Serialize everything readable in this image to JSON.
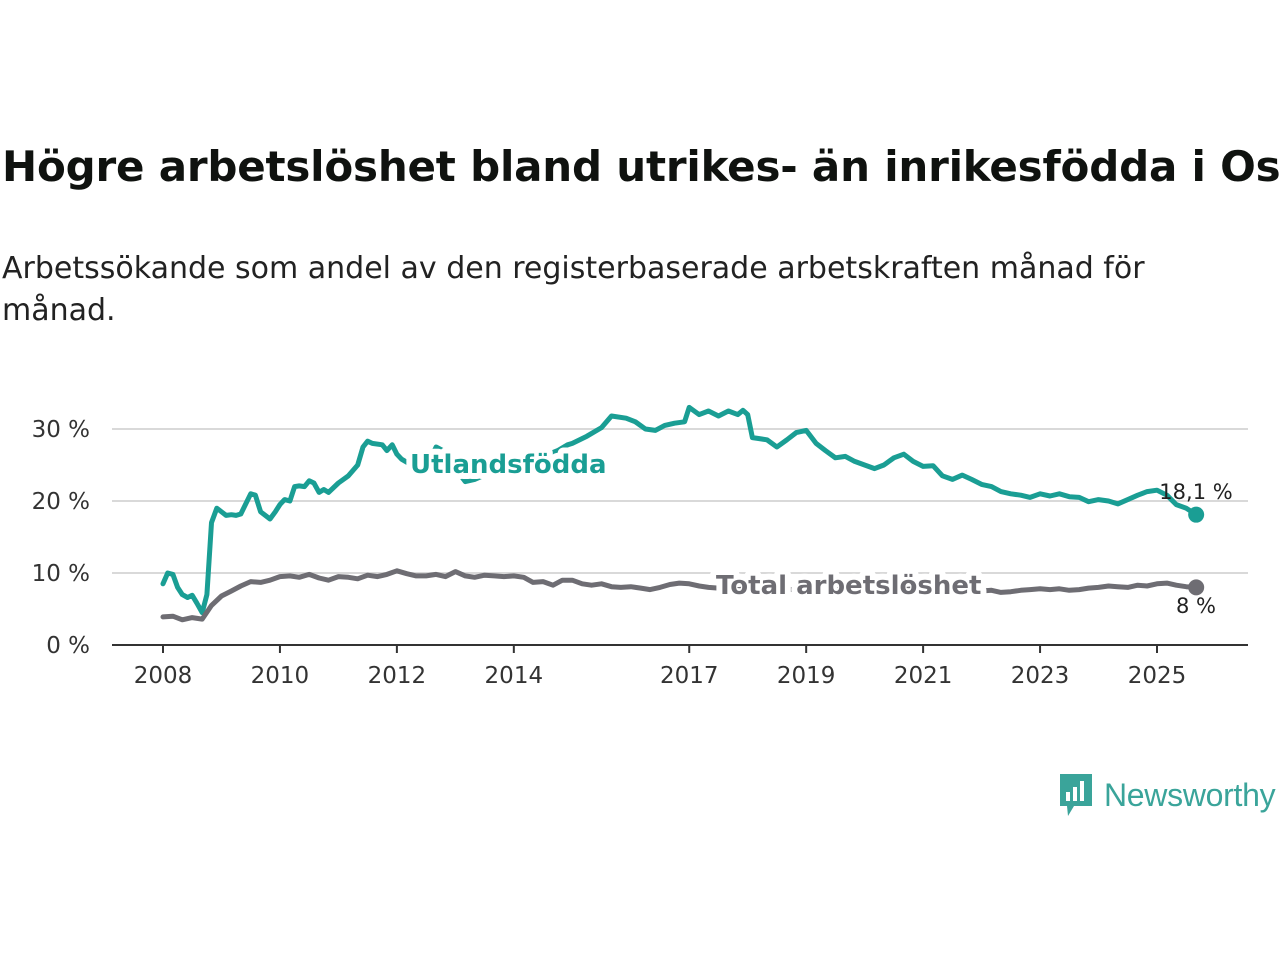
{
  "title": "Högre arbetslöshet bland utrikes- än inrikesfödda i Osby",
  "subtitle": "Arbetssökande som andel av den registerbaserade arbetskraften månad för månad.",
  "brand": {
    "name": "Newsworthy",
    "color": "#3aa49a",
    "icon": "bar-chart-speech-bubble-icon"
  },
  "chart_data": {
    "type": "line",
    "title": "Högre arbetslöshet bland utrikes- än inrikesfödda i Osby",
    "xlabel": "",
    "ylabel": "",
    "ylim": [
      0,
      33
    ],
    "xlim": [
      2007.8,
      2025.75
    ],
    "grid": true,
    "x_ticks": [
      2008,
      2010,
      2012,
      2014,
      2017,
      2019,
      2021,
      2023,
      2025
    ],
    "x_tick_labels": [
      "2008",
      "2010",
      "2012",
      "2014",
      "2017",
      "2019",
      "2021",
      "2023",
      "2025"
    ],
    "y_ticks": [
      0,
      10,
      20,
      30
    ],
    "y_tick_labels": [
      "0 %",
      "10 %",
      "20 %",
      "30 %"
    ],
    "series": [
      {
        "name": "Utlandsfödda",
        "color": "#1a9e94",
        "end_label": "18,1 %",
        "x": [
          2008.0,
          2008.08,
          2008.17,
          2008.25,
          2008.33,
          2008.42,
          2008.5,
          2008.58,
          2008.67,
          2008.75,
          2008.83,
          2008.92,
          2009.0,
          2009.08,
          2009.17,
          2009.25,
          2009.33,
          2009.5,
          2009.58,
          2009.67,
          2009.75,
          2009.83,
          2009.92,
          2010.0,
          2010.08,
          2010.17,
          2010.25,
          2010.33,
          2010.42,
          2010.5,
          2010.58,
          2010.67,
          2010.75,
          2010.83,
          2011.0,
          2011.17,
          2011.33,
          2011.42,
          2011.5,
          2011.58,
          2011.75,
          2011.83,
          2011.92,
          2012.0,
          2012.08,
          2012.25,
          2012.5,
          2012.67,
          2012.83,
          2013.0,
          2013.17,
          2013.33,
          2013.5,
          2013.75,
          2014.0,
          2014.25,
          2014.5,
          2014.75,
          2014.92,
          2015.0,
          2015.25,
          2015.5,
          2015.67,
          2015.92,
          2016.08,
          2016.25,
          2016.42,
          2016.58,
          2016.75,
          2016.92,
          2017.0,
          2017.17,
          2017.33,
          2017.5,
          2017.67,
          2017.83,
          2017.92,
          2018.0,
          2018.08,
          2018.17,
          2018.33,
          2018.5,
          2018.67,
          2018.83,
          2019.0,
          2019.17,
          2019.33,
          2019.5,
          2019.67,
          2019.83,
          2020.0,
          2020.17,
          2020.33,
          2020.5,
          2020.67,
          2020.83,
          2021.0,
          2021.17,
          2021.33,
          2021.5,
          2021.67,
          2021.83,
          2022.0,
          2022.17,
          2022.33,
          2022.5,
          2022.67,
          2022.83,
          2023.0,
          2023.17,
          2023.33,
          2023.5,
          2023.67,
          2023.83,
          2024.0,
          2024.17,
          2024.33,
          2024.5,
          2024.67,
          2024.83,
          2025.0,
          2025.17,
          2025.33,
          2025.5,
          2025.67
        ],
        "values": [
          8.5,
          10.0,
          9.8,
          8.0,
          7.0,
          6.6,
          6.9,
          5.8,
          4.5,
          7.0,
          17.0,
          19.0,
          18.5,
          18.0,
          18.1,
          18.0,
          18.2,
          21.0,
          20.8,
          18.5,
          18.0,
          17.5,
          18.5,
          19.5,
          20.2,
          20.0,
          22.0,
          22.1,
          22.0,
          22.8,
          22.5,
          21.2,
          21.6,
          21.2,
          22.5,
          23.5,
          25.0,
          27.5,
          28.3,
          28.0,
          27.8,
          27.0,
          27.8,
          26.5,
          25.8,
          25.0,
          24.5,
          27.5,
          26.8,
          24.5,
          22.7,
          23.0,
          23.6,
          24.5,
          25.2,
          25.5,
          26.2,
          27.0,
          27.8,
          28.0,
          29.0,
          30.2,
          31.8,
          31.5,
          31.0,
          30.0,
          29.8,
          30.5,
          30.8,
          31.0,
          33.0,
          32.0,
          32.5,
          31.8,
          32.5,
          32.0,
          32.6,
          32.0,
          28.8,
          28.7,
          28.5,
          27.5,
          28.5,
          29.5,
          29.8,
          28.0,
          27.0,
          26.0,
          26.2,
          25.5,
          25.0,
          24.5,
          25.0,
          26.0,
          26.5,
          25.5,
          24.8,
          24.9,
          23.5,
          23.0,
          23.6,
          23.0,
          22.3,
          22.0,
          21.3,
          21.0,
          20.8,
          20.5,
          21.0,
          20.7,
          21.0,
          20.6,
          20.5,
          19.9,
          20.2,
          20.0,
          19.6,
          20.2,
          20.8,
          21.3,
          21.5,
          20.8,
          19.5,
          19.0,
          18.1
        ]
      },
      {
        "name": "Total arbetslöshet",
        "color": "#6e6d73",
        "end_label": "8 %",
        "x": [
          2008.0,
          2008.17,
          2008.33,
          2008.5,
          2008.67,
          2008.83,
          2009.0,
          2009.17,
          2009.33,
          2009.5,
          2009.67,
          2009.83,
          2010.0,
          2010.17,
          2010.33,
          2010.5,
          2010.67,
          2010.83,
          2011.0,
          2011.17,
          2011.33,
          2011.5,
          2011.67,
          2011.83,
          2012.0,
          2012.17,
          2012.33,
          2012.5,
          2012.67,
          2012.83,
          2013.0,
          2013.17,
          2013.33,
          2013.5,
          2013.67,
          2013.83,
          2014.0,
          2014.17,
          2014.33,
          2014.5,
          2014.67,
          2014.83,
          2015.0,
          2015.17,
          2015.33,
          2015.5,
          2015.67,
          2015.83,
          2016.0,
          2016.17,
          2016.33,
          2016.5,
          2016.67,
          2016.83,
          2017.0,
          2017.17,
          2017.33,
          2017.5,
          2017.67,
          2017.83,
          2018.0,
          2018.17,
          2018.33,
          2018.5,
          2018.67,
          2018.83,
          2019.0,
          2019.17,
          2019.33,
          2019.5,
          2019.67,
          2019.83,
          2020.0,
          2020.17,
          2020.33,
          2020.5,
          2020.67,
          2020.83,
          2021.0,
          2021.17,
          2021.33,
          2021.5,
          2021.67,
          2021.83,
          2022.0,
          2022.17,
          2022.33,
          2022.5,
          2022.67,
          2022.83,
          2023.0,
          2023.17,
          2023.33,
          2023.5,
          2023.67,
          2023.83,
          2024.0,
          2024.17,
          2024.33,
          2024.5,
          2024.67,
          2024.83,
          2025.0,
          2025.17,
          2025.33,
          2025.5,
          2025.67
        ],
        "values": [
          3.9,
          4.0,
          3.5,
          3.8,
          3.6,
          5.5,
          6.8,
          7.5,
          8.2,
          8.8,
          8.7,
          9.0,
          9.5,
          9.6,
          9.4,
          9.8,
          9.3,
          9.0,
          9.5,
          9.4,
          9.2,
          9.7,
          9.5,
          9.8,
          10.3,
          9.9,
          9.6,
          9.6,
          9.8,
          9.5,
          10.2,
          9.6,
          9.4,
          9.7,
          9.6,
          9.5,
          9.6,
          9.4,
          8.7,
          8.8,
          8.3,
          9.0,
          9.0,
          8.5,
          8.3,
          8.5,
          8.1,
          8.0,
          8.1,
          7.9,
          7.7,
          8.0,
          8.4,
          8.6,
          8.5,
          8.2,
          8.0,
          7.9,
          7.8,
          7.7,
          7.8,
          7.8,
          7.6,
          7.7,
          7.8,
          7.6,
          7.8,
          7.7,
          7.8,
          7.6,
          7.9,
          7.7,
          7.8,
          7.6,
          7.8,
          7.7,
          7.7,
          7.8,
          7.6,
          7.7,
          7.5,
          7.6,
          7.4,
          7.5,
          7.5,
          7.6,
          7.3,
          7.4,
          7.6,
          7.7,
          7.8,
          7.7,
          7.8,
          7.6,
          7.7,
          7.9,
          8.0,
          8.2,
          8.1,
          8.0,
          8.3,
          8.2,
          8.5,
          8.6,
          8.3,
          8.1,
          8.0
        ]
      }
    ]
  }
}
